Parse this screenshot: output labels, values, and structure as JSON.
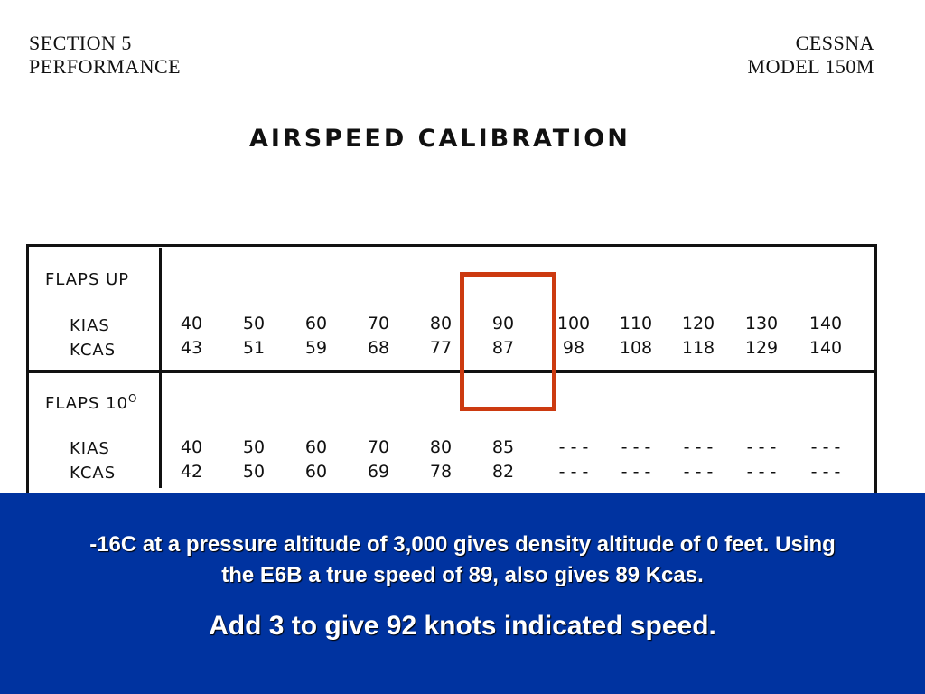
{
  "header": {
    "left_line1": "SECTION 5",
    "left_line2": "PERFORMANCE",
    "right_line1": "CESSNA",
    "right_line2": "MODEL 150M"
  },
  "title": "AIRSPEED CALIBRATION",
  "flaps_up": {
    "label": "FLAPS UP",
    "kias_label": "KIAS",
    "kcas_label": "KCAS",
    "kias": [
      "40",
      "50",
      "60",
      "70",
      "80",
      "90",
      "100",
      "110",
      "120",
      "130",
      "140"
    ],
    "kcas": [
      "43",
      "51",
      "59",
      "68",
      "77",
      "87",
      "98",
      "108",
      "118",
      "129",
      "140"
    ]
  },
  "flaps_10": {
    "label": "FLAPS 10",
    "degree": "O",
    "kias_label": "KIAS",
    "kcas_label": "KCAS",
    "kias": [
      "40",
      "50",
      "60",
      "70",
      "80",
      "85",
      "- - -",
      "- - -",
      "- - -",
      "- - -",
      "- - -"
    ],
    "kcas": [
      "42",
      "50",
      "60",
      "69",
      "78",
      "82",
      "- - -",
      "- - -",
      "- - -",
      "- - -",
      "- - -"
    ]
  },
  "colors": {
    "highlight": "#cc3a10",
    "note_background": "#0033a0"
  },
  "note": {
    "line1": "-16C at a pressure altitude of 3,000 gives density altitude of 0 feet. Using",
    "line2": "the E6B a true speed of 89, also gives 89 Kcas.",
    "emphasis": "Add 3 to give 92 knots indicated speed."
  }
}
